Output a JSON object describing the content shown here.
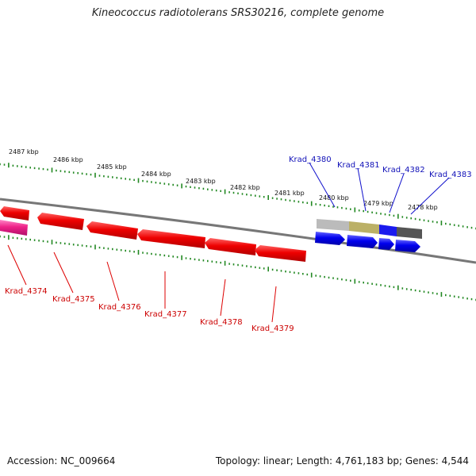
{
  "title": "Kineococcus radiotolerans SRS30216, complete genome",
  "footer": {
    "accession": "Accession: NC_009664",
    "topology": "Topology: linear; Length: 4,761,183 bp; Genes: 4,544"
  },
  "colors": {
    "forward_genes": "#ee0000",
    "reverse_genes": "#0000ee",
    "pink_gene": "#ee2288",
    "tick": "#228822",
    "backbone": "#777777"
  },
  "scale_labels": [
    "2487 kbp",
    "2486 kbp",
    "2485 kbp",
    "2484 kbp",
    "2483 kbp",
    "2482 kbp",
    "2481 kbp",
    "2480 kbp",
    "2479 kbp",
    "2478 kbp"
  ],
  "red_labels": [
    "Krad_4374",
    "Krad_4375",
    "Krad_4376",
    "Krad_4377",
    "Krad_4378",
    "Krad_4379"
  ],
  "blue_labels": [
    "Krad_4380",
    "Krad_4381",
    "Krad_4382",
    "Krad_4383"
  ]
}
